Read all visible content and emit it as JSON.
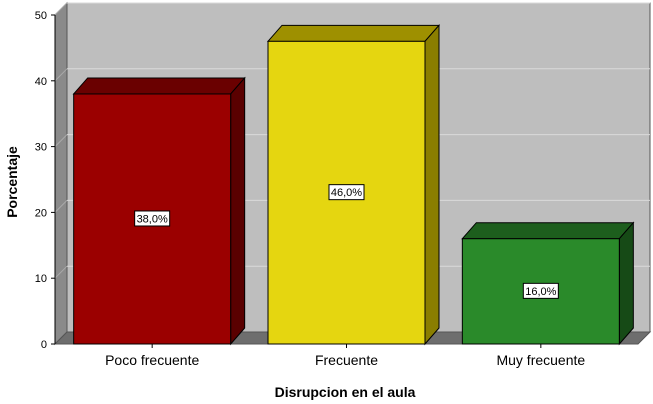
{
  "chart_data": {
    "type": "bar",
    "categories": [
      "Poco frecuente",
      "Frecuente",
      "Muy frecuente"
    ],
    "values": [
      38.0,
      46.0,
      16.0
    ],
    "data_labels": [
      "38,0%",
      "46,0%",
      "16,0%"
    ],
    "xlabel": "Disrupcion en el aula",
    "ylabel": "Porcentaje",
    "ylim": [
      0,
      50
    ],
    "yticks": [
      0,
      10,
      20,
      30,
      40,
      50
    ],
    "grid": true,
    "style": "3d",
    "colors": {
      "bars": [
        "#9b0000",
        "#e5d610",
        "#2a8a2a"
      ],
      "bar_tops": [
        "#6a0000",
        "#9e9000",
        "#1d5e1d"
      ],
      "bar_sides": [
        "#5a0000",
        "#8a7e00",
        "#164a16"
      ],
      "plot_back": "#bebebe",
      "plot_wall": "#8a8a8a",
      "plot_floor": "#6e6e6e",
      "gridline": "#dadada"
    }
  }
}
